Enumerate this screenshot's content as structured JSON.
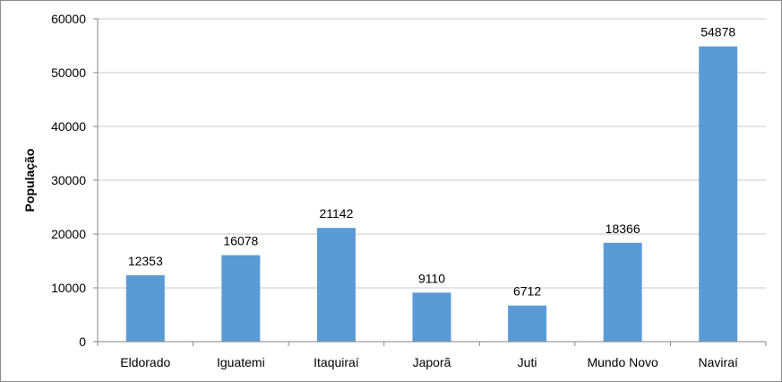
{
  "chart_data": {
    "type": "bar",
    "title": "",
    "xlabel": "",
    "ylabel": "População",
    "categories": [
      "Eldorado",
      "Iguatemi",
      "Itaquiraí",
      "Japorã",
      "Juti",
      "Mundo Novo",
      "Naviraí"
    ],
    "series": [
      {
        "values": [
          12353,
          16078,
          21142,
          9110,
          6712,
          18366,
          54878
        ]
      }
    ],
    "data_labels": [
      "12353",
      "16078",
      "21142",
      "9110",
      "6712",
      "18366",
      "54878"
    ],
    "ylim": [
      0,
      60000
    ],
    "yticks": [
      0,
      10000,
      20000,
      30000,
      40000,
      50000,
      60000
    ],
    "ytick_labels": [
      "0",
      "10000",
      "20000",
      "30000",
      "40000",
      "50000",
      "60000"
    ],
    "grid": true,
    "legend": "none",
    "bar_color": "#5b9bd5",
    "grid_color": "#c8c8c8",
    "axis_color": "#868686"
  }
}
